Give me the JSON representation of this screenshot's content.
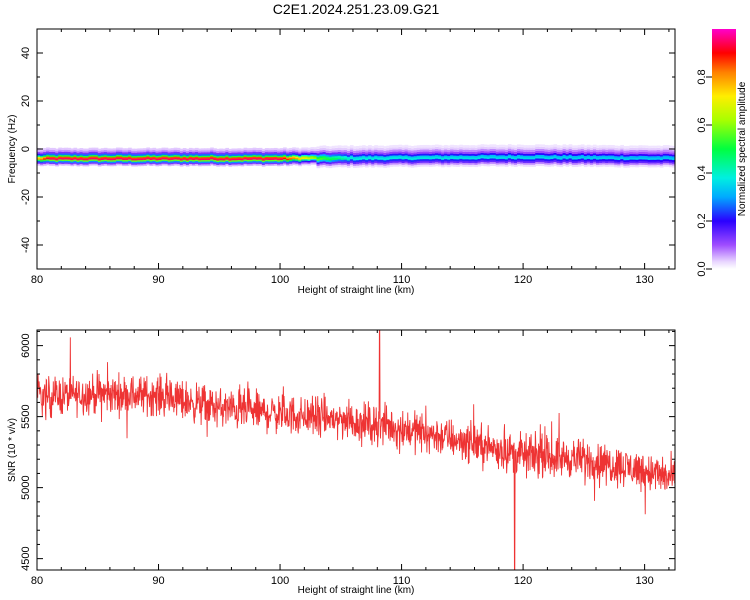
{
  "title": "C2E1.2024.251.23.09.G21",
  "chart_data": [
    {
      "type": "heatmap",
      "title": "C2E1.2024.251.23.09.G21",
      "xlabel": "Height of straight line (km)",
      "ylabel": "Frequency (Hz)",
      "xlim": [
        80,
        132.5
      ],
      "ylim": [
        -50,
        50
      ],
      "xticks": [
        80,
        90,
        100,
        110,
        120,
        130
      ],
      "yticks": [
        -40,
        -20,
        0,
        20,
        40
      ],
      "ridge_center_hz": [
        {
          "x": 80,
          "y": -2
        },
        {
          "x": 100,
          "y": -2
        },
        {
          "x": 105,
          "y": -1.5
        },
        {
          "x": 120,
          "y": -1
        },
        {
          "x": 132.5,
          "y": -1.5
        }
      ],
      "peak_amplitude_by_height": [
        {
          "x": 80,
          "v": 0.75
        },
        {
          "x": 81,
          "v": 0.95
        },
        {
          "x": 100,
          "v": 0.95
        },
        {
          "x": 103,
          "v": 0.6
        },
        {
          "x": 106,
          "v": 0.4
        },
        {
          "x": 132,
          "v": 0.35
        }
      ],
      "colorbar": {
        "label": "Normalized spectral amplitude",
        "range": [
          0,
          1
        ],
        "ticks": [
          0.0,
          0.2,
          0.4,
          0.6,
          0.8
        ],
        "colormap": "hsv-rainbow (violet to red)"
      },
      "grid": false
    },
    {
      "type": "line",
      "xlabel": "Height of straight line (km)",
      "ylabel": "SNR (10 * v/v)",
      "xlim": [
        80,
        132.5
      ],
      "ylim": [
        4420,
        6110
      ],
      "xticks": [
        80,
        90,
        100,
        110,
        120,
        130
      ],
      "yticks": [
        4500,
        5000,
        5500,
        6000
      ],
      "series": [
        {
          "color": "#ee3333",
          "trend": [
            {
              "x": 80,
              "y": 5640
            },
            {
              "x": 85,
              "y": 5660
            },
            {
              "x": 90,
              "y": 5650
            },
            {
              "x": 95,
              "y": 5560
            },
            {
              "x": 100,
              "y": 5520
            },
            {
              "x": 105,
              "y": 5480
            },
            {
              "x": 110,
              "y": 5420
            },
            {
              "x": 115,
              "y": 5330
            },
            {
              "x": 120,
              "y": 5230
            },
            {
              "x": 125,
              "y": 5200
            },
            {
              "x": 130,
              "y": 5120
            },
            {
              "x": 132.5,
              "y": 5060
            }
          ],
          "noise_amplitude": 150,
          "max_point": {
            "x": 108.2,
            "y": 6110
          },
          "min_point": {
            "x": 119.3,
            "y": 4420
          }
        }
      ],
      "grid": false
    }
  ]
}
